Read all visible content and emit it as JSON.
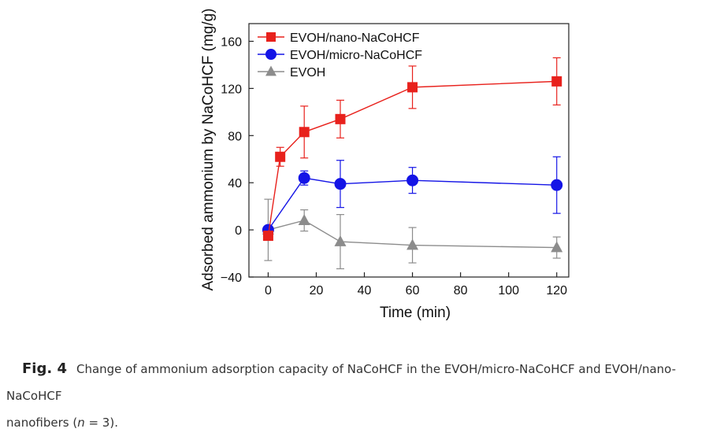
{
  "chart_data": {
    "type": "line",
    "xlabel": "Time (min)",
    "ylabel": "Adsorbed ammonium by NaCoHCF (mg/g)",
    "xlim": [
      -8,
      125
    ],
    "ylim": [
      -40,
      175
    ],
    "xticks": [
      0,
      20,
      40,
      60,
      80,
      100,
      120
    ],
    "yticks": [
      -40,
      0,
      40,
      80,
      120,
      160
    ],
    "legend_position": "top-left",
    "series": [
      {
        "name": "EVOH/nano-NaCoHCF",
        "color": "#e8211c",
        "marker": "square",
        "x": [
          0,
          5,
          15,
          30,
          60,
          120
        ],
        "y": [
          -5,
          62,
          83,
          94,
          121,
          126
        ],
        "err": [
          3,
          8,
          22,
          16,
          18,
          20
        ]
      },
      {
        "name": "EVOH/micro-NaCoHCF",
        "color": "#1414e6",
        "marker": "circle",
        "x": [
          0,
          15,
          30,
          60,
          120
        ],
        "y": [
          0,
          44,
          39,
          42,
          38
        ],
        "err": [
          2,
          6,
          20,
          11,
          24
        ]
      },
      {
        "name": "EVOH",
        "color": "#8c8c8c",
        "marker": "triangle",
        "x": [
          0,
          15,
          30,
          60,
          120
        ],
        "y": [
          0,
          8,
          -10,
          -13,
          -15
        ],
        "err": [
          26,
          9,
          23,
          15,
          9
        ]
      }
    ]
  },
  "caption": {
    "label": "Fig. 4",
    "text_line1": "Change of ammonium adsorption capacity of NaCoHCF in the EVOH/micro-NaCoHCF and EVOH/nano-NaCoHCF",
    "text_line2_prefix": "nanofibers (",
    "n_symbol": "n",
    "text_line2_suffix": " = 3)."
  }
}
